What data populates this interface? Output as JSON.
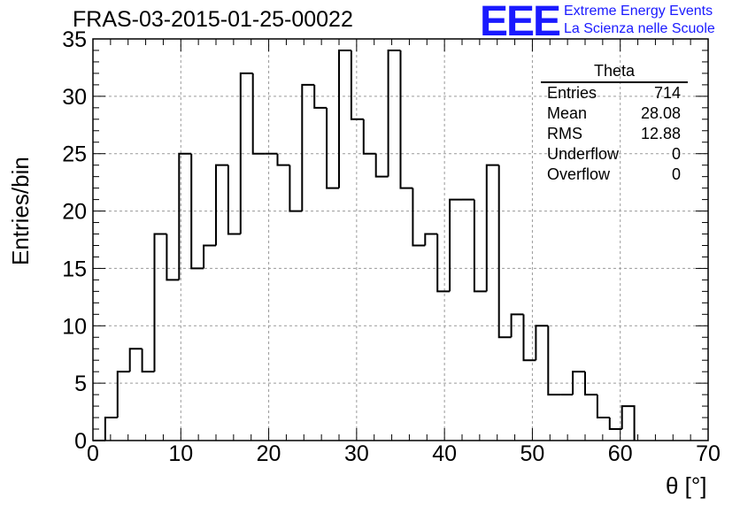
{
  "header": {
    "title": "FRAS-03-2015-01-25-00022",
    "logo_text": "EEE",
    "logo_line1": "Extreme Energy Events",
    "logo_line2": "La Scienza nelle Scuole"
  },
  "stats_box": {
    "title": "Theta",
    "rows": [
      {
        "label": "Entries",
        "value": "714"
      },
      {
        "label": "Mean",
        "value": "28.08"
      },
      {
        "label": "RMS",
        "value": "12.88"
      },
      {
        "label": "Underflow",
        "value": "0"
      },
      {
        "label": "Overflow",
        "value": "0"
      }
    ]
  },
  "chart_data": {
    "type": "bar",
    "histogram": true,
    "xlabel": "θ [°]",
    "ylabel": "Entries/bin",
    "xlim": [
      0,
      70
    ],
    "ylim": [
      0,
      35
    ],
    "grid": true,
    "bin_edges": [
      0.0,
      1.4,
      2.8,
      4.2,
      5.6,
      7.0,
      8.4,
      9.8,
      11.2,
      12.6,
      14.0,
      15.4,
      16.8,
      18.2,
      19.6,
      21.0,
      22.4,
      23.8,
      25.2,
      26.6,
      28.0,
      29.4,
      30.8,
      32.2,
      33.6,
      35.0,
      36.4,
      37.8,
      39.2,
      40.6,
      42.0,
      43.4,
      44.8,
      46.2,
      47.6,
      49.0,
      50.4,
      51.8,
      53.2,
      54.6,
      56.0,
      57.4,
      58.8,
      60.2,
      61.6
    ],
    "values": [
      0,
      2,
      6,
      8,
      6,
      18,
      14,
      25,
      15,
      17,
      24,
      18,
      32,
      25,
      25,
      24,
      20,
      31,
      29,
      22,
      34,
      28,
      25,
      23,
      34,
      22,
      17,
      18,
      13,
      21,
      21,
      13,
      24,
      9,
      11,
      7,
      10,
      4,
      4,
      6,
      4,
      2,
      1,
      3
    ],
    "xticks": [
      0,
      10,
      20,
      30,
      40,
      50,
      60,
      70
    ],
    "yticks": [
      0,
      5,
      10,
      15,
      20,
      25,
      30,
      35
    ]
  }
}
